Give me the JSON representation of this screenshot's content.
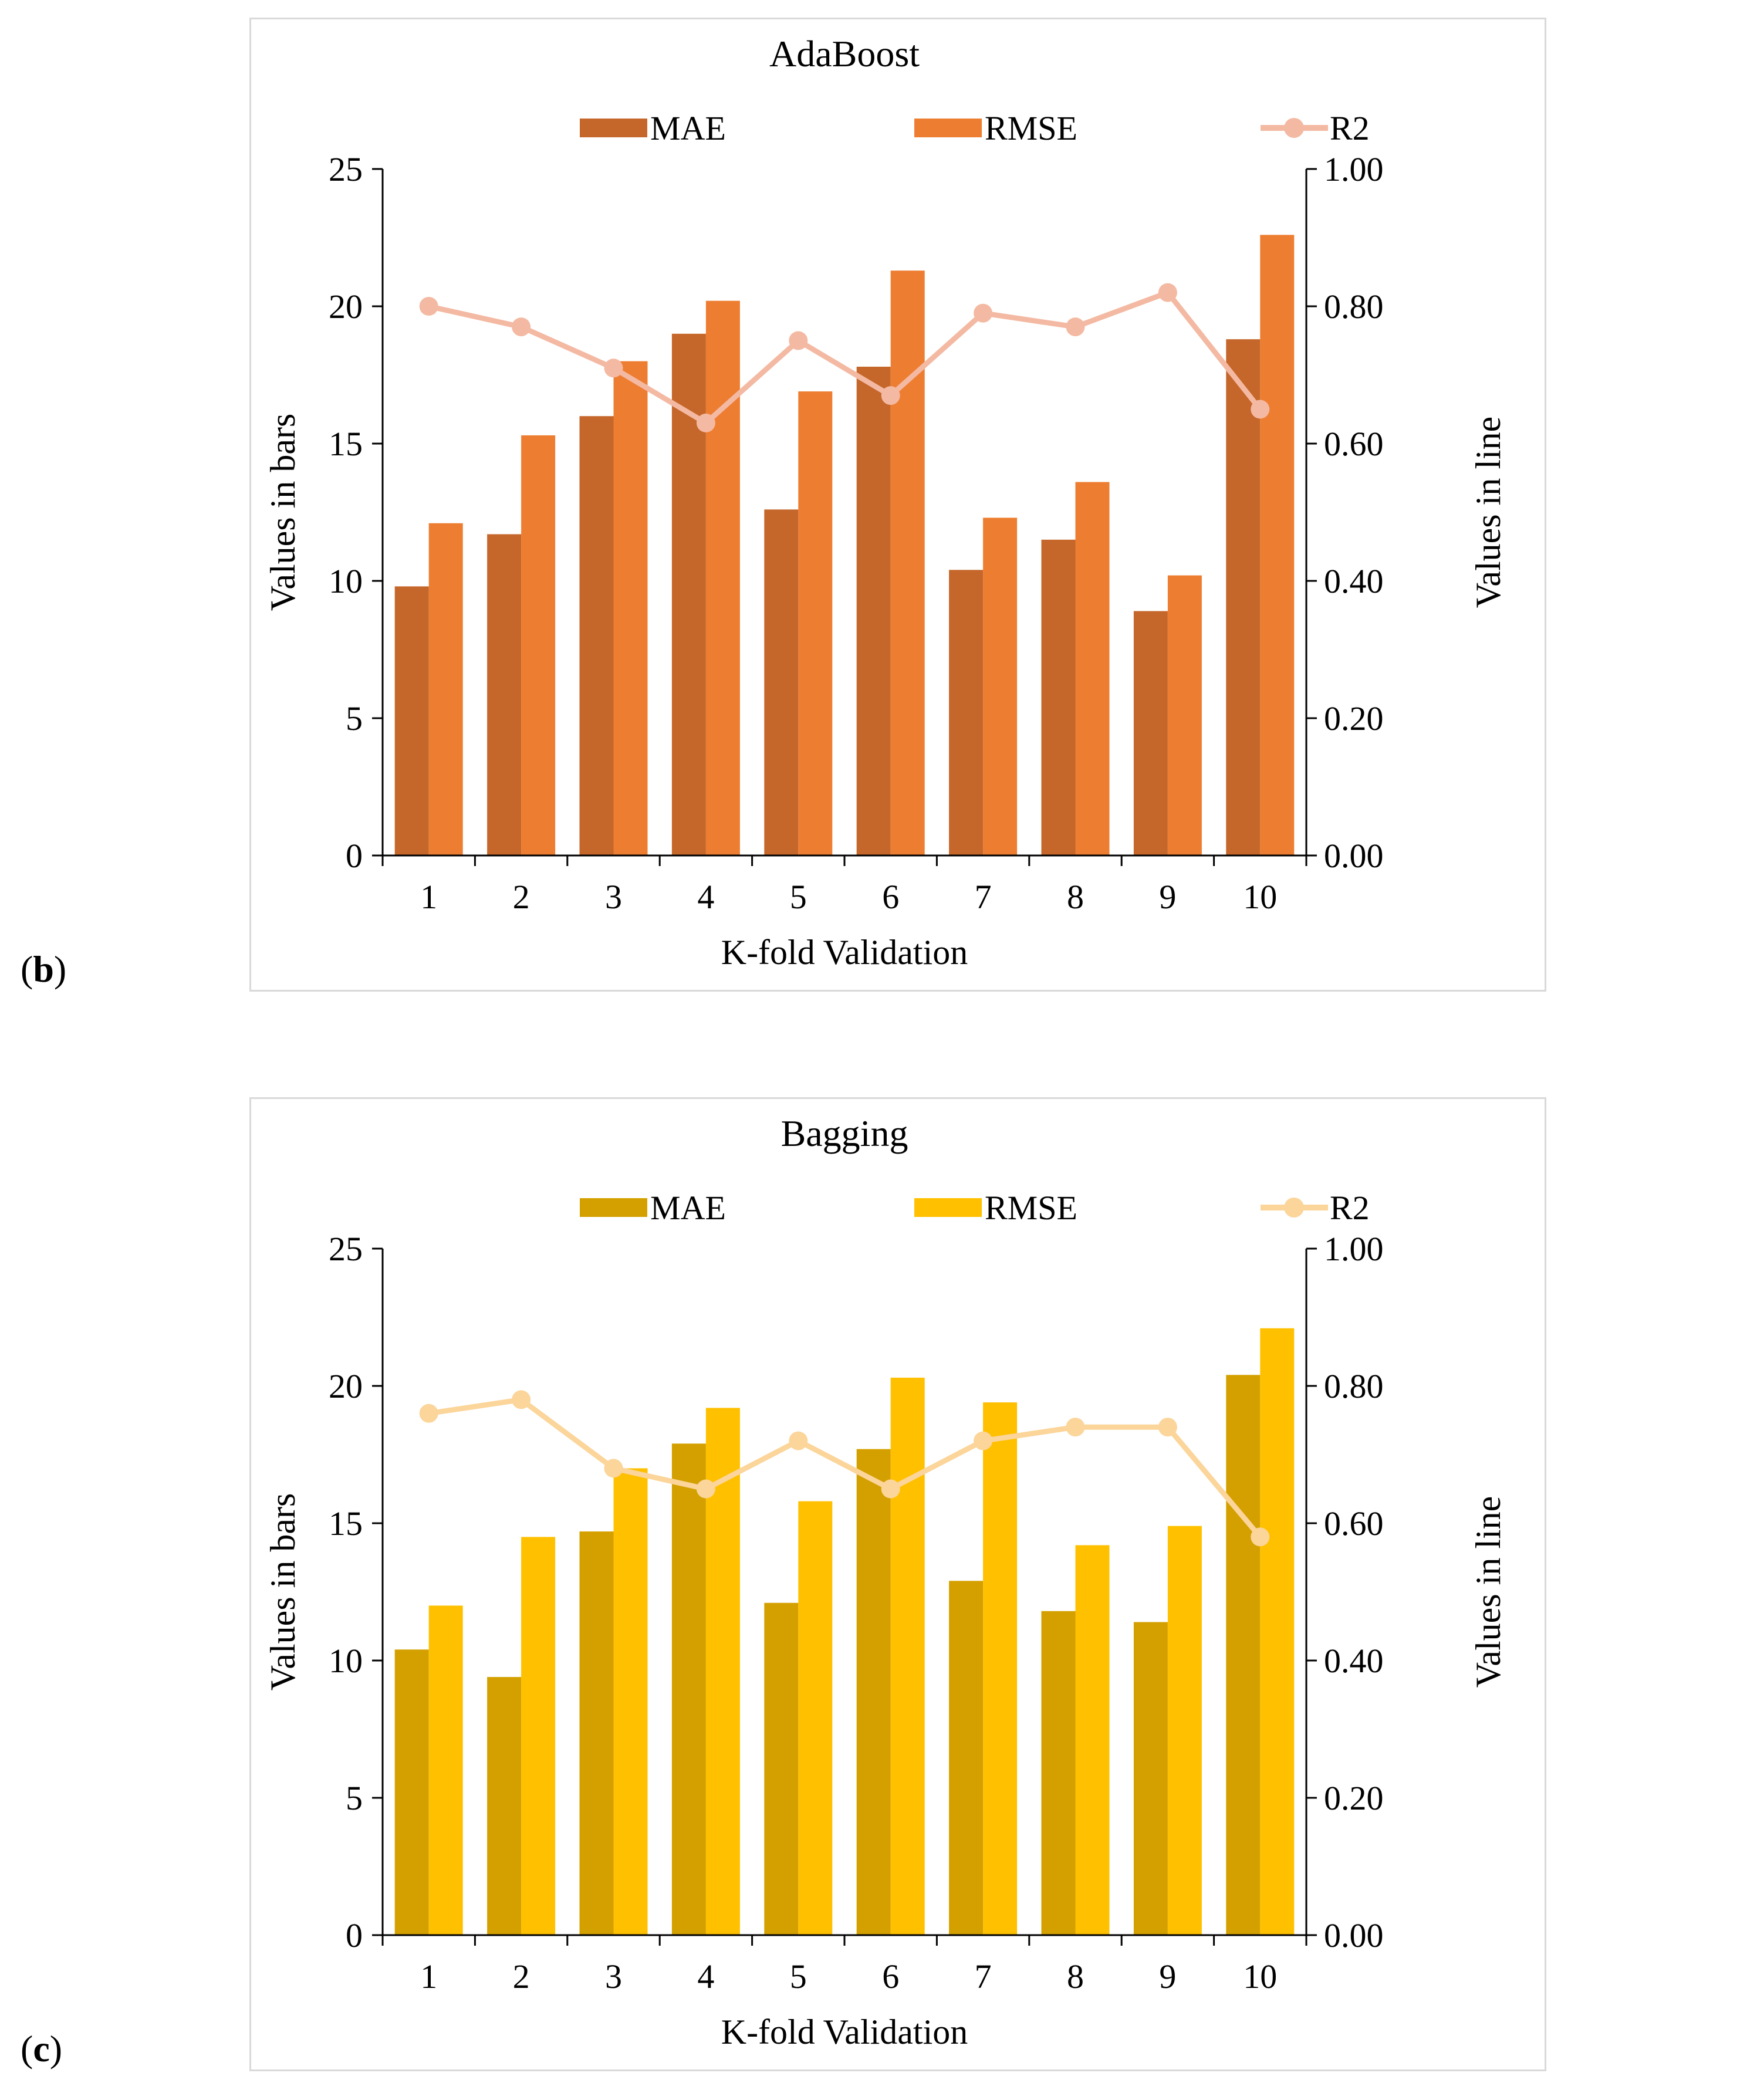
{
  "chart_data": [
    {
      "type": "bar",
      "panel_label": "b",
      "title": "AdaBoost",
      "categories": [
        "1",
        "2",
        "3",
        "4",
        "5",
        "6",
        "7",
        "8",
        "9",
        "10"
      ],
      "series": [
        {
          "name": "MAE",
          "type": "bar",
          "axis": "left",
          "color": "#c5662a",
          "values": [
            9.8,
            11.7,
            16.0,
            19.0,
            12.6,
            17.8,
            10.4,
            11.5,
            8.9,
            18.8
          ]
        },
        {
          "name": "RMSE",
          "type": "bar",
          "axis": "left",
          "color": "#ed7d31",
          "values": [
            12.1,
            15.3,
            18.0,
            20.2,
            16.9,
            21.3,
            12.3,
            13.6,
            10.2,
            22.6
          ]
        },
        {
          "name": "R2",
          "type": "line",
          "axis": "right",
          "color": "#f4b9a2",
          "values": [
            0.8,
            0.77,
            0.71,
            0.63,
            0.75,
            0.67,
            0.79,
            0.77,
            0.82,
            0.65
          ]
        }
      ],
      "xlabel": "K-fold Validation",
      "ylabel": "Values in bars",
      "y2label": "Values in line",
      "ylim": [
        0,
        25
      ],
      "y2lim": [
        0,
        1
      ],
      "yticks": [
        "0",
        "5",
        "10",
        "15",
        "20",
        "25"
      ],
      "y2ticks": [
        "0.00",
        "0.20",
        "0.40",
        "0.60",
        "0.80",
        "1.00"
      ],
      "legend": "top",
      "grid": false
    },
    {
      "type": "bar",
      "panel_label": "c",
      "title": "Bagging",
      "categories": [
        "1",
        "2",
        "3",
        "4",
        "5",
        "6",
        "7",
        "8",
        "9",
        "10"
      ],
      "series": [
        {
          "name": "MAE",
          "type": "bar",
          "axis": "left",
          "color": "#d4a000",
          "values": [
            10.4,
            9.4,
            14.7,
            17.9,
            12.1,
            17.7,
            12.9,
            11.8,
            11.4,
            20.4
          ]
        },
        {
          "name": "RMSE",
          "type": "bar",
          "axis": "left",
          "color": "#ffc000",
          "values": [
            12.0,
            14.5,
            17.0,
            19.2,
            15.8,
            20.3,
            19.4,
            14.2,
            14.9,
            22.1
          ]
        },
        {
          "name": "R2",
          "type": "line",
          "axis": "right",
          "color": "#fbd59a",
          "values": [
            0.76,
            0.78,
            0.68,
            0.65,
            0.72,
            0.65,
            0.72,
            0.74,
            0.74,
            0.58
          ]
        }
      ],
      "xlabel": "K-fold Validation",
      "ylabel": "Values in bars",
      "y2label": "Values in line",
      "ylim": [
        0,
        25
      ],
      "y2lim": [
        0,
        1
      ],
      "yticks": [
        "0",
        "5",
        "10",
        "15",
        "20",
        "25"
      ],
      "y2ticks": [
        "0.00",
        "0.20",
        "0.40",
        "0.60",
        "0.80",
        "1.00"
      ],
      "legend": "top",
      "grid": false
    }
  ]
}
